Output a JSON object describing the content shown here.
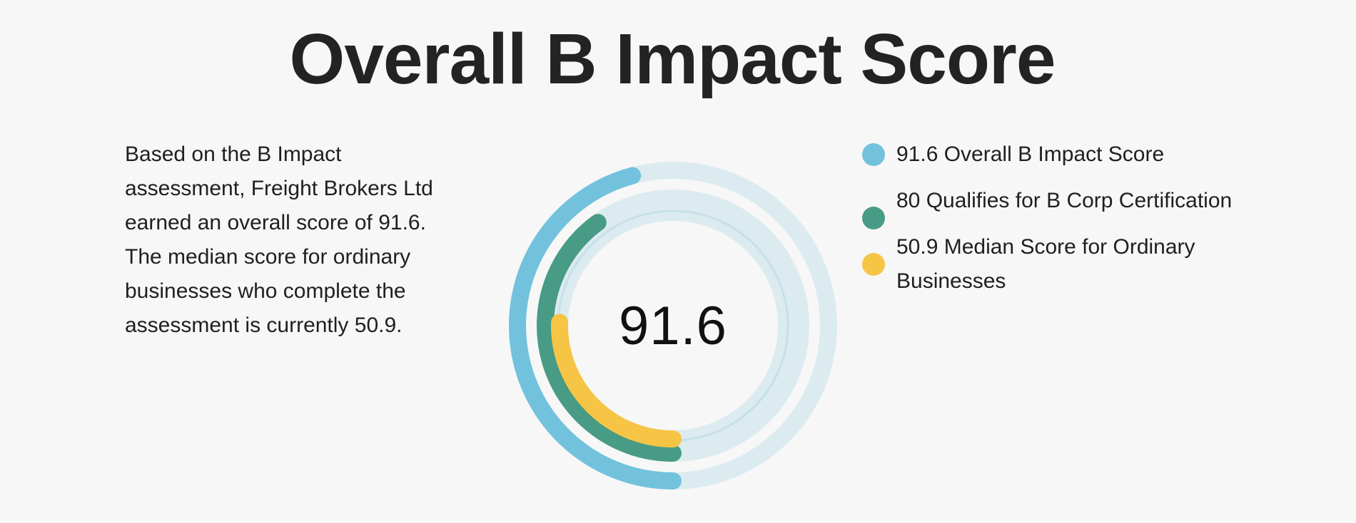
{
  "title": "Overall B Impact Score",
  "description": "Based on the B Impact assessment, Freight Brokers Ltd earned an overall score of 91.6. The median score for ordinary businesses who complete the assessment is currently 50.9.",
  "center_score": "91.6",
  "gauge": {
    "max": 200,
    "track_color": "#dcebef",
    "rings": [
      {
        "name": "overall",
        "value": 91.6,
        "color": "#72c2dd"
      },
      {
        "name": "b-corp-threshold",
        "value": 80,
        "color": "#489b84"
      },
      {
        "name": "median",
        "value": 50.9,
        "color": "#f6c545"
      }
    ]
  },
  "legend": [
    {
      "label": "91.6 Overall B Impact Score",
      "color": "#72c2dd"
    },
    {
      "label": "80 Qualifies for B Corp Certification",
      "color": "#489b84"
    },
    {
      "label": "50.9 Median Score for Ordinary Businesses",
      "color": "#f6c545"
    }
  ]
}
